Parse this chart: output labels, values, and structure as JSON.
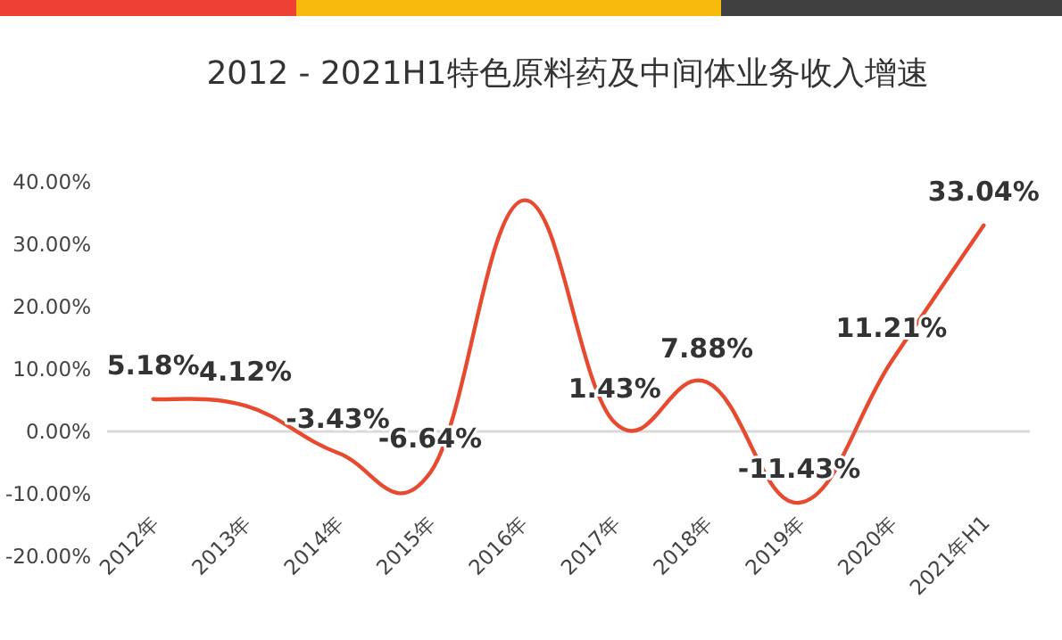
{
  "chart_data": {
    "type": "line",
    "title": "2012 - 2021H1特色原料药及中间体业务收入增速",
    "categories": [
      "2012年",
      "2013年",
      "2014年",
      "2015年",
      "2016年",
      "2017年",
      "2018年",
      "2019年",
      "2020年",
      "2021年H1"
    ],
    "series": [
      {
        "color": "#e84a2f",
        "values": [
          5.18,
          4.12,
          -3.43,
          -6.64,
          37,
          1.43,
          7.88,
          -11.43,
          11.21,
          33.04
        ],
        "value_labels": [
          "5.18%",
          "4.12%",
          "-3.43%",
          "-6.64%",
          null,
          "1.43%",
          "7.88%",
          "-11.43%",
          "11.21%",
          "33.04%"
        ]
      }
    ],
    "ylim": [
      -20,
      40
    ],
    "yticks": [
      {
        "value": -20,
        "label": "-20.00%"
      },
      {
        "value": -10,
        "label": "-10.00%"
      },
      {
        "value": 0,
        "label": "0.00%"
      },
      {
        "value": 10,
        "label": "10.00%"
      },
      {
        "value": 20,
        "label": "20.00%"
      },
      {
        "value": 30,
        "label": "30.00%"
      },
      {
        "value": 40,
        "label": "40.00%"
      }
    ],
    "ref_lines": [
      {
        "axis": "y",
        "value": 0,
        "color": "#d9d9d9"
      }
    ],
    "grid": false,
    "marker": "none",
    "line_style": "solid"
  }
}
